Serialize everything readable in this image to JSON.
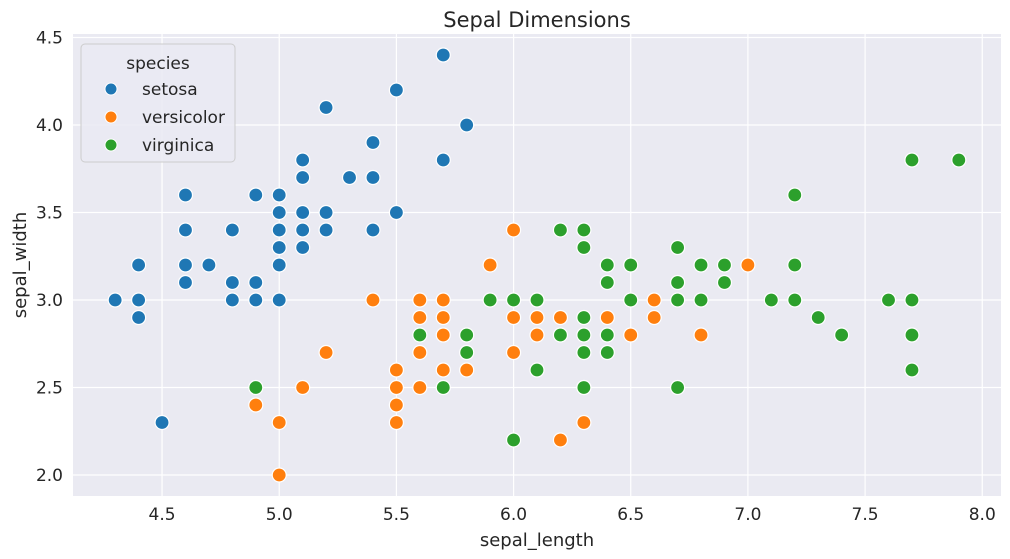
{
  "chart_data": {
    "type": "scatter",
    "title": "Sepal Dimensions",
    "xlabel": "sepal_length",
    "ylabel": "sepal_width",
    "xlim": [
      4.12,
      8.08
    ],
    "ylim": [
      1.88,
      4.52
    ],
    "xticks": [
      4.5,
      5.0,
      5.5,
      6.0,
      6.5,
      7.0,
      7.5,
      8.0
    ],
    "xtick_labels": [
      "4.5",
      "5.0",
      "5.5",
      "6.0",
      "6.5",
      "7.0",
      "7.5",
      "8.0"
    ],
    "yticks": [
      2.0,
      2.5,
      3.0,
      3.5,
      4.0,
      4.5
    ],
    "ytick_labels": [
      "2.0",
      "2.5",
      "3.0",
      "3.5",
      "4.0",
      "4.5"
    ],
    "grid": true,
    "background_color": "#eaeaf2",
    "legend": {
      "title": "species",
      "position": "top-left"
    },
    "series": [
      {
        "name": "setosa",
        "color": "#1f77b4",
        "points": [
          [
            4.3,
            3.0
          ],
          [
            4.4,
            3.2
          ],
          [
            4.4,
            3.0
          ],
          [
            4.4,
            2.9
          ],
          [
            4.5,
            2.3
          ],
          [
            4.6,
            3.6
          ],
          [
            4.6,
            3.4
          ],
          [
            4.6,
            3.2
          ],
          [
            4.6,
            3.1
          ],
          [
            4.7,
            3.2
          ],
          [
            4.8,
            3.4
          ],
          [
            4.8,
            3.1
          ],
          [
            4.8,
            3.0
          ],
          [
            4.9,
            3.6
          ],
          [
            4.9,
            3.1
          ],
          [
            4.9,
            3.0
          ],
          [
            5.0,
            3.6
          ],
          [
            5.0,
            3.5
          ],
          [
            5.0,
            3.4
          ],
          [
            5.0,
            3.3
          ],
          [
            5.0,
            3.2
          ],
          [
            5.0,
            3.0
          ],
          [
            5.1,
            3.8
          ],
          [
            5.1,
            3.7
          ],
          [
            5.1,
            3.5
          ],
          [
            5.1,
            3.4
          ],
          [
            5.1,
            3.3
          ],
          [
            5.2,
            4.1
          ],
          [
            5.2,
            3.5
          ],
          [
            5.2,
            3.4
          ],
          [
            5.3,
            3.7
          ],
          [
            5.4,
            3.9
          ],
          [
            5.4,
            3.7
          ],
          [
            5.4,
            3.4
          ],
          [
            5.5,
            4.2
          ],
          [
            5.5,
            3.5
          ],
          [
            5.7,
            4.4
          ],
          [
            5.7,
            3.8
          ],
          [
            5.8,
            4.0
          ]
        ]
      },
      {
        "name": "versicolor",
        "color": "#ff7f0e",
        "points": [
          [
            4.9,
            2.4
          ],
          [
            5.0,
            2.3
          ],
          [
            5.0,
            2.0
          ],
          [
            5.1,
            2.5
          ],
          [
            5.2,
            2.7
          ],
          [
            5.4,
            3.0
          ],
          [
            5.5,
            2.6
          ],
          [
            5.5,
            2.5
          ],
          [
            5.5,
            2.4
          ],
          [
            5.5,
            2.3
          ],
          [
            5.6,
            3.0
          ],
          [
            5.6,
            2.9
          ],
          [
            5.6,
            2.7
          ],
          [
            5.6,
            2.5
          ],
          [
            5.7,
            3.0
          ],
          [
            5.7,
            2.9
          ],
          [
            5.7,
            2.8
          ],
          [
            5.7,
            2.6
          ],
          [
            5.8,
            2.6
          ],
          [
            5.9,
            3.2
          ],
          [
            6.0,
            3.4
          ],
          [
            6.0,
            2.9
          ],
          [
            6.0,
            2.7
          ],
          [
            6.1,
            3.0
          ],
          [
            6.1,
            2.9
          ],
          [
            6.1,
            2.8
          ],
          [
            6.2,
            2.9
          ],
          [
            6.2,
            2.2
          ],
          [
            6.3,
            2.5
          ],
          [
            6.3,
            2.3
          ],
          [
            6.4,
            2.9
          ],
          [
            6.5,
            2.8
          ],
          [
            6.6,
            3.0
          ],
          [
            6.6,
            2.9
          ],
          [
            6.8,
            2.8
          ],
          [
            7.0,
            3.2
          ]
        ]
      },
      {
        "name": "virginica",
        "color": "#2ca02c",
        "points": [
          [
            4.9,
            2.5
          ],
          [
            5.6,
            2.8
          ],
          [
            5.7,
            2.5
          ],
          [
            5.8,
            2.8
          ],
          [
            5.8,
            2.7
          ],
          [
            5.9,
            3.0
          ],
          [
            6.0,
            3.0
          ],
          [
            6.0,
            2.2
          ],
          [
            6.1,
            3.0
          ],
          [
            6.1,
            2.6
          ],
          [
            6.2,
            3.4
          ],
          [
            6.2,
            2.8
          ],
          [
            6.3,
            3.4
          ],
          [
            6.3,
            3.3
          ],
          [
            6.3,
            2.9
          ],
          [
            6.3,
            2.8
          ],
          [
            6.3,
            2.7
          ],
          [
            6.3,
            2.5
          ],
          [
            6.4,
            3.2
          ],
          [
            6.4,
            3.1
          ],
          [
            6.4,
            2.8
          ],
          [
            6.4,
            2.7
          ],
          [
            6.5,
            3.2
          ],
          [
            6.5,
            3.0
          ],
          [
            6.7,
            3.3
          ],
          [
            6.7,
            3.1
          ],
          [
            6.7,
            3.0
          ],
          [
            6.7,
            2.5
          ],
          [
            6.8,
            3.2
          ],
          [
            6.8,
            3.0
          ],
          [
            6.9,
            3.2
          ],
          [
            6.9,
            3.1
          ],
          [
            7.1,
            3.0
          ],
          [
            7.2,
            3.6
          ],
          [
            7.2,
            3.2
          ],
          [
            7.2,
            3.0
          ],
          [
            7.3,
            2.9
          ],
          [
            7.4,
            2.8
          ],
          [
            7.6,
            3.0
          ],
          [
            7.7,
            3.8
          ],
          [
            7.7,
            3.0
          ],
          [
            7.7,
            2.8
          ],
          [
            7.7,
            2.6
          ],
          [
            7.9,
            3.8
          ]
        ]
      }
    ]
  }
}
